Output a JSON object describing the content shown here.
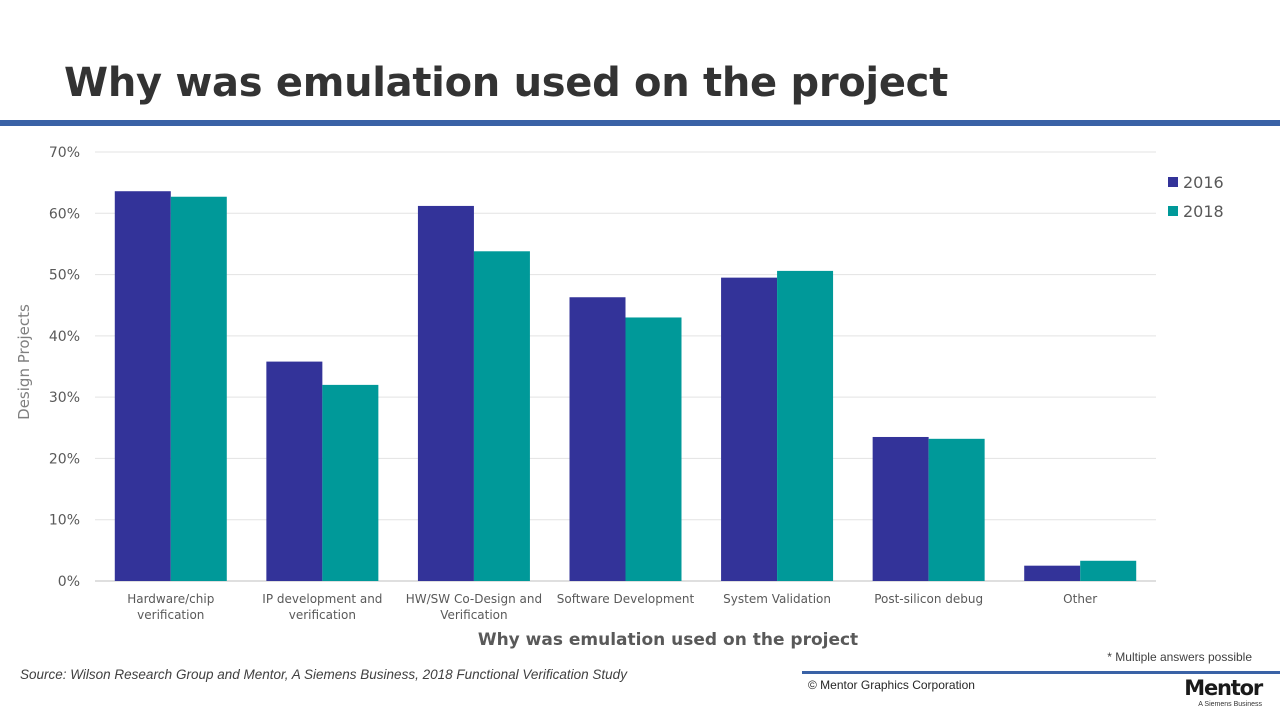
{
  "slide": {
    "title": "Why was emulation used on the project",
    "source": "Source:  Wilson Research Group and Mentor, A Siemens Business, 2018 Functional Verification  Study",
    "note": "* Multiple answers possible",
    "copyright": "© Mentor Graphics Corporation",
    "logo_name": "Mentor",
    "logo_tagline": "A Siemens Business",
    "accent_color": "#3a62a6"
  },
  "chart_data": {
    "type": "bar",
    "title": "",
    "xlabel": "Why was emulation used on the project",
    "ylabel": "Design Projects",
    "ylim": [
      0,
      70
    ],
    "y_ticks": [
      "0%",
      "10%",
      "20%",
      "30%",
      "40%",
      "50%",
      "60%",
      "70%"
    ],
    "y_tick_values": [
      0,
      10,
      20,
      30,
      40,
      50,
      60,
      70
    ],
    "grid": true,
    "legend_position": "top-right",
    "categories": [
      "Hardware/chip verification",
      "IP development and verification",
      "HW/SW Co-Design and Verification",
      "Software Development",
      "System Validation",
      "Post-silicon debug",
      "Other"
    ],
    "category_lines": [
      [
        "Hardware/chip",
        "verification"
      ],
      [
        "IP development and",
        "verification"
      ],
      [
        "HW/SW Co-Design and",
        "Verification"
      ],
      [
        "Software Development"
      ],
      [
        "System Validation"
      ],
      [
        "Post-silicon debug"
      ],
      [
        "Other"
      ]
    ],
    "series": [
      {
        "name": "2016",
        "color": "#333399",
        "values": [
          63.6,
          35.8,
          61.2,
          46.3,
          49.5,
          23.5,
          2.5
        ]
      },
      {
        "name": "2018",
        "color": "#009999",
        "values": [
          62.7,
          32.0,
          53.8,
          43.0,
          50.6,
          23.2,
          3.3
        ]
      }
    ]
  }
}
